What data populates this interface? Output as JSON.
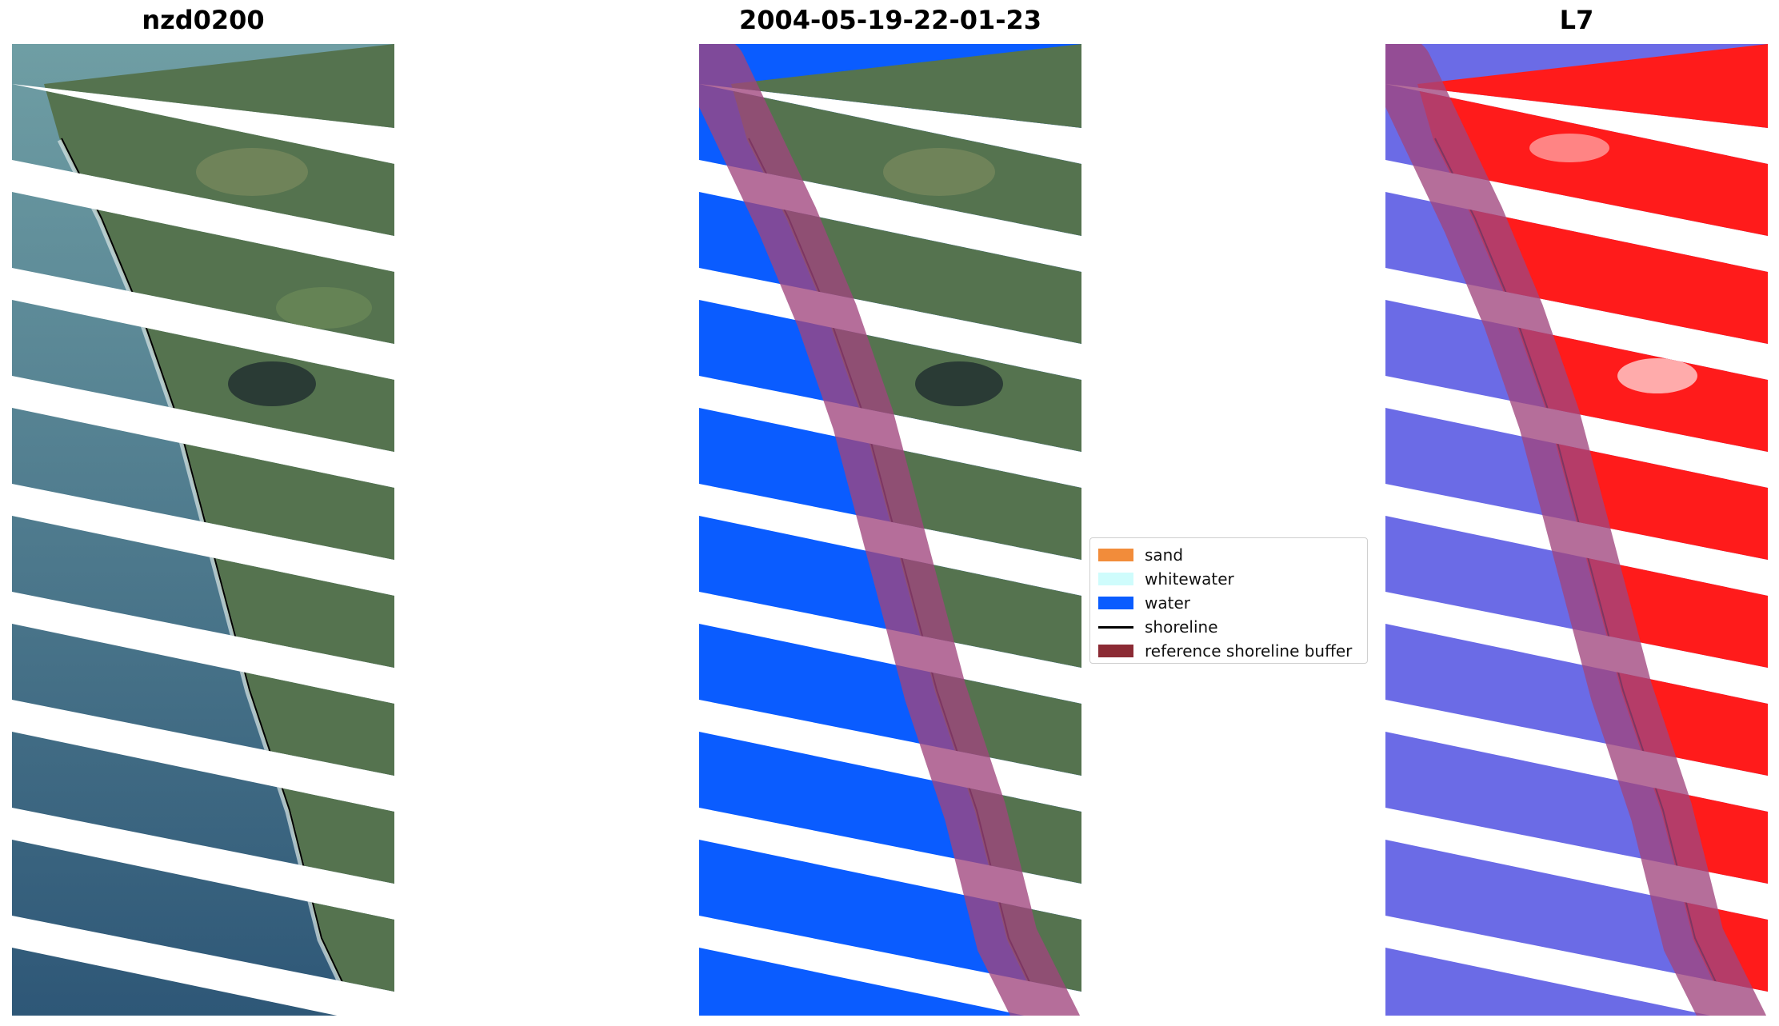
{
  "panels": [
    {
      "title": "nzd0200"
    },
    {
      "title": "2004-05-19-22-01-23"
    },
    {
      "title": "L7"
    }
  ],
  "legend": {
    "items": [
      {
        "label": "sand",
        "color": "#f28c3a",
        "kind": "patch"
      },
      {
        "label": "whitewater",
        "color": "#cffcfc",
        "kind": "patch"
      },
      {
        "label": "water",
        "color": "#0a5cff",
        "kind": "patch"
      },
      {
        "label": "shoreline",
        "color": "#000000",
        "kind": "line"
      },
      {
        "label": "reference shoreline buffer",
        "color": "#8b2a34",
        "kind": "patch"
      }
    ]
  },
  "colors": {
    "land": "#4f6f4c",
    "sea": "#3f6e8f",
    "water_class": "#0a5cff",
    "buffer": "#a0457d",
    "index_land": "#ff1b1b",
    "index_water": "#6b6be6"
  }
}
